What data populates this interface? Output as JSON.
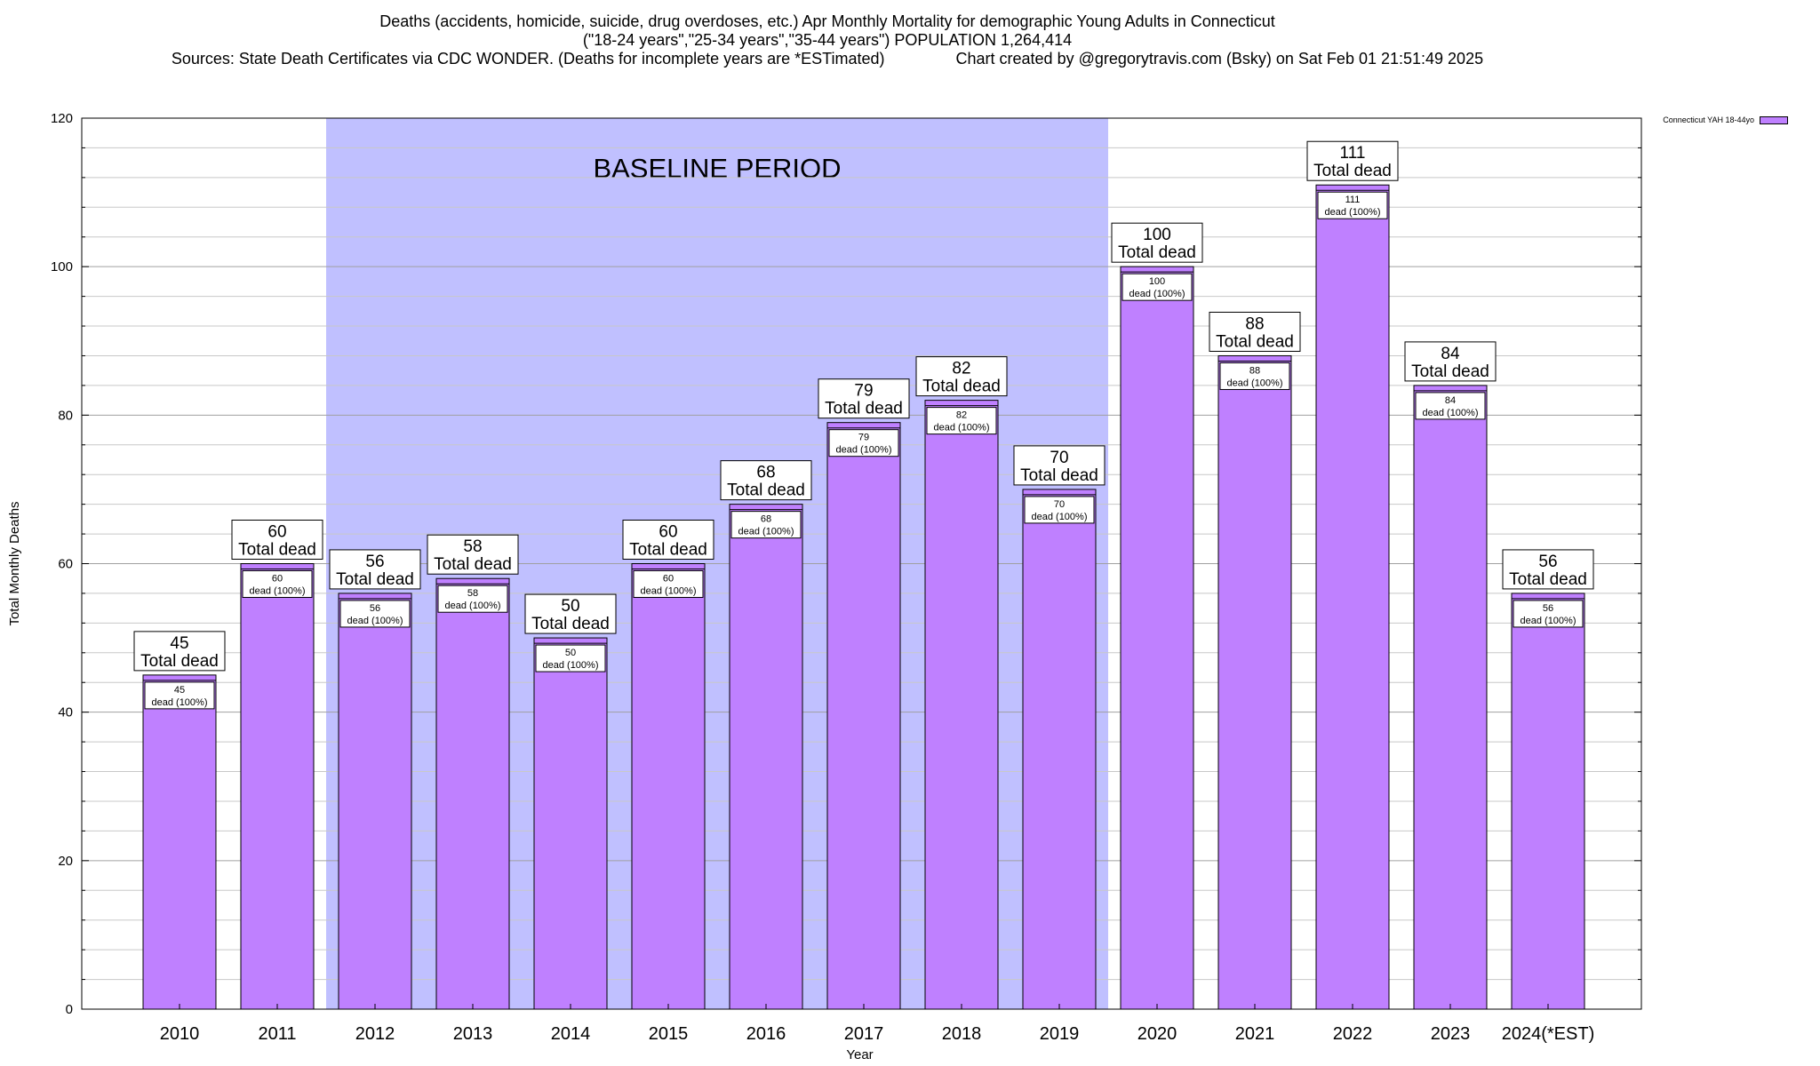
{
  "header": {
    "line1": "Deaths (accidents, homicide, suicide, drug overdoses, etc.) Apr Monthly Mortality for demographic Young Adults in Connecticut",
    "line2": "(\"18-24 years\",\"25-34 years\",\"35-44 years\") POPULATION 1,264,414",
    "line3": "Sources: State Death Certificates via CDC WONDER. (Deaths for incomplete years are *ESTimated)                Chart created by @gregorytravis.com (Bsky) on Sat Feb 01 21:51:49 2025"
  },
  "chart_data": {
    "type": "bar",
    "title": "Deaths (accidents, homicide, suicide, drug overdoses, etc.) Apr Monthly Mortality for demographic Young Adults in Connecticut",
    "xlabel": "Year",
    "ylabel": "Total Monthly Deaths",
    "ylim": [
      0,
      120
    ],
    "yticks": [
      0,
      20,
      40,
      60,
      80,
      100,
      120
    ],
    "grid": true,
    "legend_position": "top-right",
    "categories": [
      "2010",
      "2011",
      "2012",
      "2013",
      "2014",
      "2015",
      "2016",
      "2017",
      "2018",
      "2019",
      "2020",
      "2021",
      "2022",
      "2023",
      "2024(*EST)"
    ],
    "series": [
      {
        "name": "Connecticut YAH 18-44yo",
        "color": "#bf80ff",
        "values": [
          45,
          60,
          56,
          58,
          50,
          60,
          68,
          79,
          82,
          70,
          100,
          88,
          111,
          84,
          56
        ]
      }
    ],
    "total_label_suffix": "Total dead",
    "inner_label_suffix": "dead (100%)",
    "baseline": {
      "label": "BASELINE PERIOD",
      "start": "2012",
      "end": "2019",
      "color": "#c0c0ff"
    }
  }
}
